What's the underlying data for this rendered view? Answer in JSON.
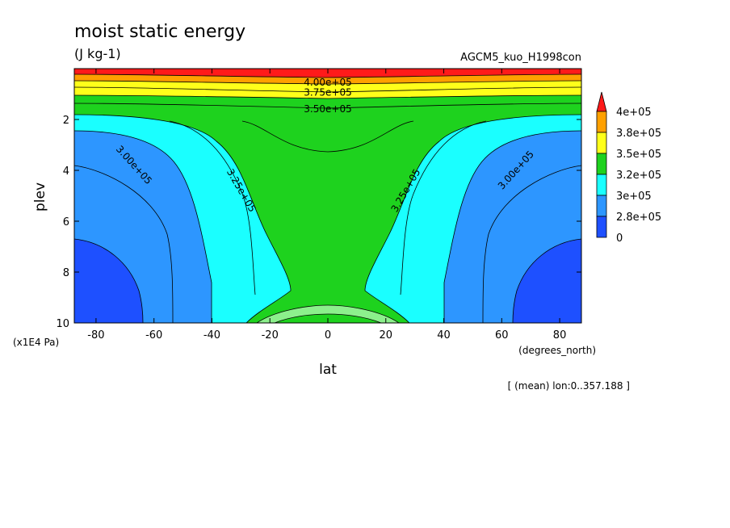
{
  "chart_data": {
    "type": "contour",
    "title": "moist static energy",
    "units": "(J kg-1)",
    "experiment": "AGCM5_kuo_H1998con",
    "xlabel": "lat",
    "xunits": "(degrees_north)",
    "ylabel": "plev",
    "yunits": "(x1E4 Pa)",
    "note": "[ (mean) lon:0..357.188 ]",
    "xlim": [
      -87.5,
      87.5
    ],
    "ylim": [
      10,
      0
    ],
    "xticks": [
      -80,
      -60,
      -40,
      -20,
      0,
      20,
      40,
      60,
      80
    ],
    "xtick_labels": [
      "-80",
      "-60",
      "-40",
      "-20",
      "0",
      "20",
      "40",
      "60",
      "80"
    ],
    "yticks": [
      2,
      4,
      6,
      8,
      10
    ],
    "ytick_labels": [
      "2",
      "4",
      "6",
      "8",
      "10"
    ],
    "colorbar": {
      "labels": [
        "4e+05",
        "3.8e+05",
        "3.5e+05",
        "3.2e+05",
        "3e+05",
        "2.8e+05",
        "0"
      ],
      "colors": [
        "#ff1a1a",
        "#ffa000",
        "#ffff1a",
        "#1ed21e",
        "#1affff",
        "#2d96ff",
        "#1e50ff"
      ]
    },
    "contour_labels": [
      {
        "text": "4.00e+05",
        "lat": 0,
        "plev": 0.55,
        "angle": 0
      },
      {
        "text": "3.75e+05",
        "lat": 0,
        "plev": 0.95,
        "angle": 0
      },
      {
        "text": "3.50e+05",
        "lat": 0,
        "plev": 1.6,
        "angle": 0
      },
      {
        "text": "3.00e+05",
        "lat": -67,
        "plev": 3.8,
        "angle": 48
      },
      {
        "text": "3.25e+05",
        "lat": -30,
        "plev": 4.8,
        "angle": 60
      },
      {
        "text": "3.25e+05",
        "lat": 27,
        "plev": 4.8,
        "angle": -60
      },
      {
        "text": "3.00e+05",
        "lat": 65,
        "plev": 4.0,
        "angle": -48
      }
    ],
    "levels": {
      "red_above": 400000,
      "orange": 380000,
      "yellow": 350000,
      "green": 320000,
      "cyan": 300000,
      "lightblue": 280000,
      "blue_below": 280000
    }
  }
}
